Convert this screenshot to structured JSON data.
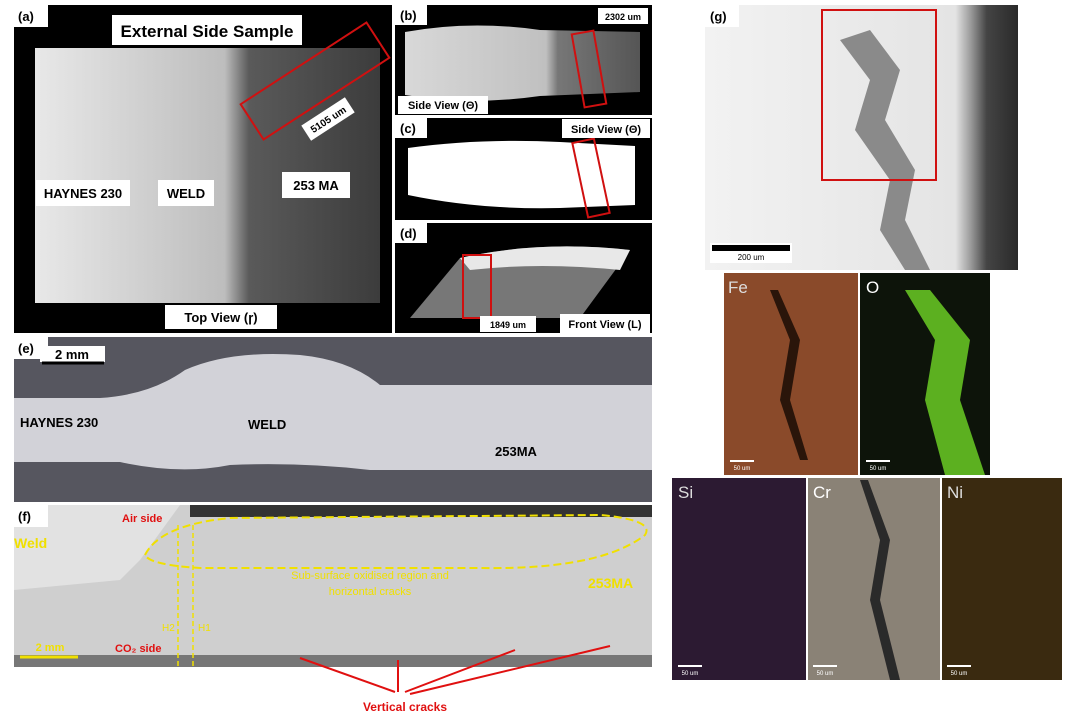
{
  "panel_a": {
    "label": "(a)",
    "title": "External Side Sample",
    "scale": "5105 um",
    "regions": [
      "HAYNES 230",
      "WELD",
      "253 MA"
    ],
    "view": "Top View (ɼ)"
  },
  "panel_b": {
    "label": "(b)",
    "scale": "2302 um",
    "view": "Side View (Θ)"
  },
  "panel_c": {
    "label": "(c)",
    "view": "Side View (Θ)"
  },
  "panel_d": {
    "label": "(d)",
    "scale": "1849 um",
    "view": "Front View (L)"
  },
  "panel_e": {
    "label": "(e)",
    "scale": "2 mm",
    "regions": [
      "HAYNES 230",
      "WELD",
      "253MA"
    ]
  },
  "panel_f": {
    "label": "(f)",
    "weld": "Weld",
    "air_side": "Air side",
    "region_note": [
      "Sub-surface oxidised region and",
      "horizontal cracks"
    ],
    "alloy": "253MA",
    "lines": [
      "H2",
      "H1"
    ],
    "scale": "2 mm",
    "co2_side": "CO₂ side",
    "arrows_label": "Vertical cracks"
  },
  "panel_g": {
    "label": "(g)",
    "scale": "200 um"
  },
  "eds_maps": [
    {
      "element": "Fe",
      "scale": "50 um"
    },
    {
      "element": "O",
      "scale": "50 um"
    },
    {
      "element": "Si",
      "scale": "50 um"
    },
    {
      "element": "Cr",
      "scale": "50 um"
    },
    {
      "element": "Ni",
      "scale": "50 um"
    }
  ]
}
